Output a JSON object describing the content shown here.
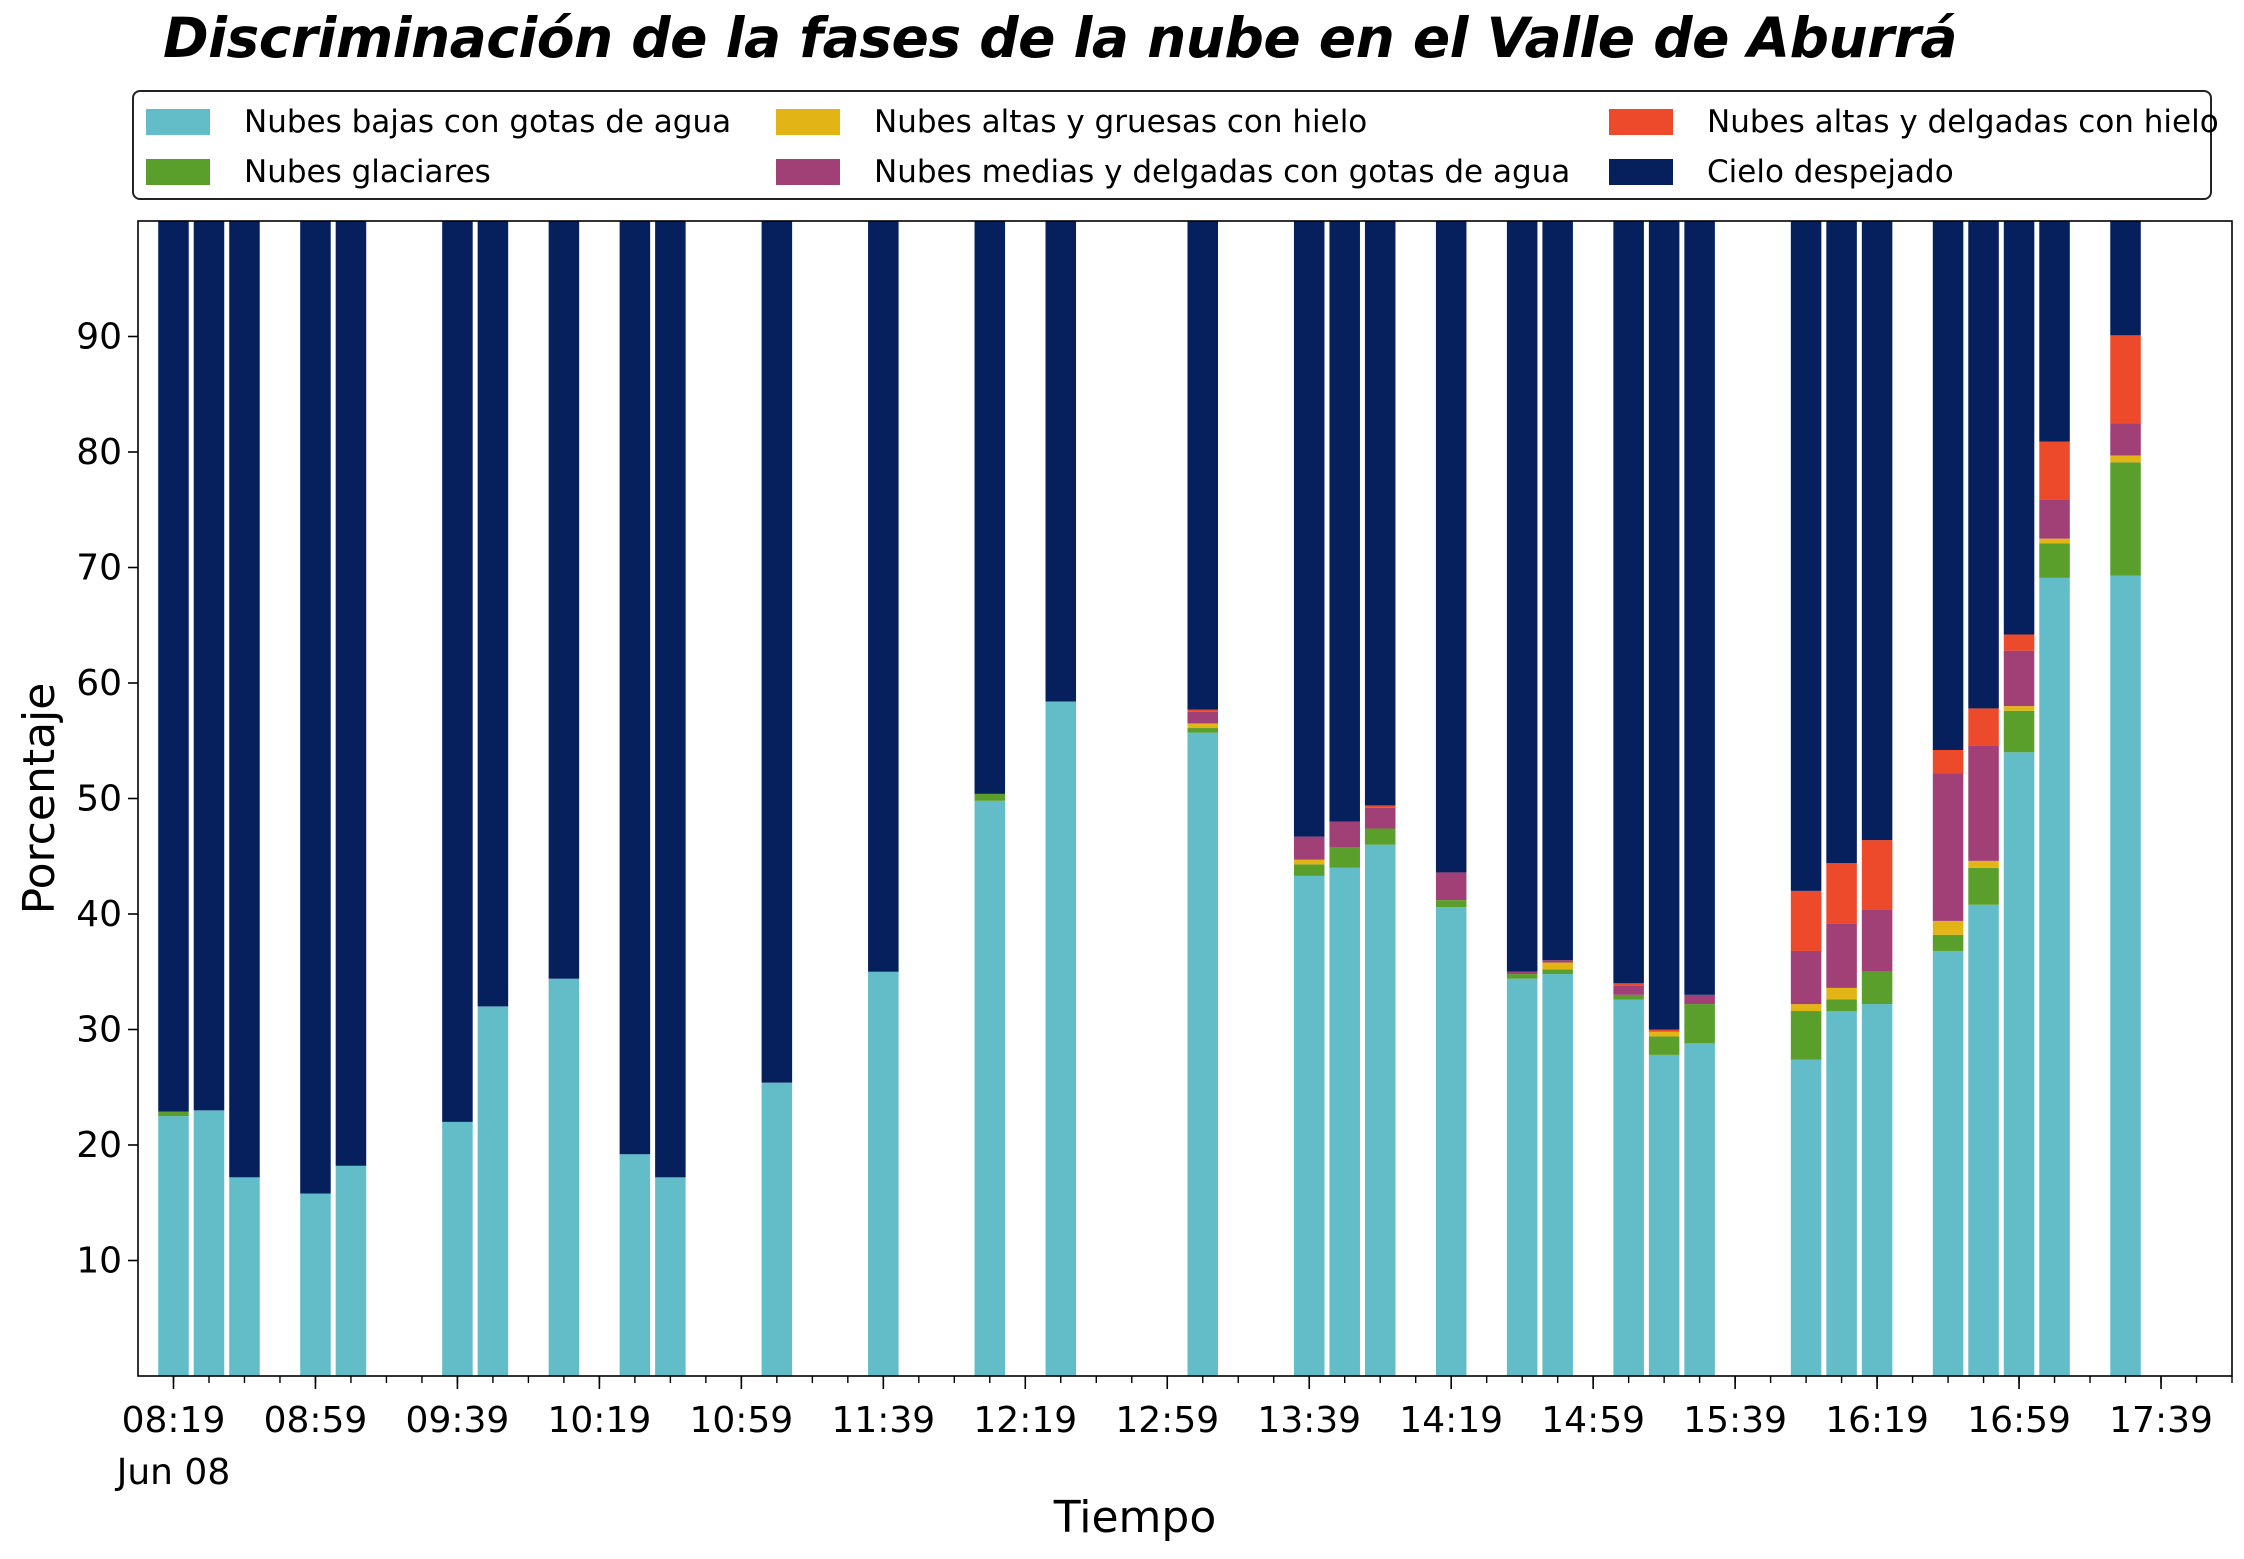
{
  "chart_data": {
    "type": "bar",
    "stacked": true,
    "title": "Discriminación de la fases de la nube en el Valle de Aburrá",
    "xlabel": "Tiempo",
    "ylabel": "Porcentaje",
    "ylim": [
      0,
      100
    ],
    "yticks": [
      10,
      20,
      30,
      40,
      50,
      60,
      70,
      80,
      90
    ],
    "xlim": [
      "08:09",
      "17:59"
    ],
    "xticks": [
      "08:19",
      "08:59",
      "09:39",
      "10:19",
      "10:59",
      "11:39",
      "12:19",
      "12:59",
      "13:39",
      "14:19",
      "14:59",
      "15:39",
      "16:19",
      "16:59",
      "17:39"
    ],
    "date_label": "Jun 08",
    "grid": false,
    "legend_position": "top",
    "legend_columns": 3,
    "x": [
      "08:19",
      "08:29",
      "08:39",
      "08:59",
      "09:09",
      "09:39",
      "09:49",
      "10:09",
      "10:29",
      "10:39",
      "11:09",
      "11:39",
      "12:09",
      "12:29",
      "13:09",
      "13:39",
      "13:49",
      "13:59",
      "14:19",
      "14:39",
      "14:49",
      "15:09",
      "15:19",
      "15:29",
      "15:59",
      "16:09",
      "16:19",
      "16:39",
      "16:49",
      "16:59",
      "17:09",
      "17:29"
    ],
    "series": [
      {
        "name": "Nubes bajas con gotas de agua",
        "color": "#63bdc8",
        "values": [
          22.5,
          23,
          17.2,
          15.8,
          18.2,
          22,
          32,
          34.4,
          19.2,
          17.2,
          25.4,
          35,
          49.8,
          58.4,
          55.7,
          43.3,
          44,
          46,
          40.6,
          34.4,
          34.8,
          32.6,
          27.8,
          28.8,
          27.4,
          31.6,
          32.2,
          36.8,
          40.8,
          54,
          69.1,
          69.3
        ]
      },
      {
        "name": "Nubes glaciares",
        "color": "#5a9e2b",
        "values": [
          0.4,
          0,
          0,
          0,
          0,
          0,
          0,
          0,
          0,
          0,
          0,
          0,
          0.6,
          0,
          0.4,
          1,
          1.8,
          1.4,
          0.6,
          0.4,
          0.4,
          0.4,
          1.6,
          3.4,
          4.2,
          1,
          2.8,
          1.4,
          3.2,
          3.6,
          3,
          9.8
        ]
      },
      {
        "name": "Nubes altas y gruesas con hielo",
        "color": "#e3b416",
        "values": [
          0,
          0,
          0,
          0,
          0,
          0,
          0,
          0,
          0,
          0,
          0,
          0,
          0,
          0,
          0.4,
          0.4,
          0,
          0,
          0,
          0,
          0.6,
          0,
          0.4,
          0,
          0.6,
          1,
          0,
          1.2,
          0.6,
          0.4,
          0.4,
          0.6
        ]
      },
      {
        "name": "Nubes medias y delgadas con gotas de agua",
        "color": "#a04077",
        "values": [
          0,
          0,
          0,
          0,
          0,
          0,
          0,
          0,
          0,
          0,
          0,
          0,
          0,
          0,
          1,
          2,
          2.2,
          1.8,
          2.4,
          0.2,
          0.2,
          0.8,
          0,
          0.8,
          4.6,
          5.6,
          5.4,
          12.8,
          10,
          4.8,
          3.4,
          2.8
        ]
      },
      {
        "name": "Nubes altas y delgadas con hielo",
        "color": "#ec4a2a",
        "values": [
          0,
          0,
          0,
          0,
          0,
          0,
          0,
          0,
          0,
          0,
          0,
          0,
          0,
          0,
          0.2,
          0,
          0,
          0.2,
          0,
          0,
          0,
          0.2,
          0.2,
          0,
          5.2,
          5.2,
          6,
          2,
          3.2,
          1.4,
          5,
          7.6
        ]
      },
      {
        "name": "Cielo despejado",
        "color": "#06205e",
        "values": [
          77.1,
          77,
          82.8,
          84.2,
          81.8,
          78,
          68,
          65.6,
          80.8,
          82.8,
          74.6,
          65,
          49.6,
          41.6,
          42.3,
          53.3,
          52,
          50.6,
          56.4,
          65,
          64,
          66,
          70,
          67,
          58,
          55.6,
          53.6,
          45.8,
          42.2,
          35.8,
          19.1,
          9.9
        ]
      }
    ]
  }
}
